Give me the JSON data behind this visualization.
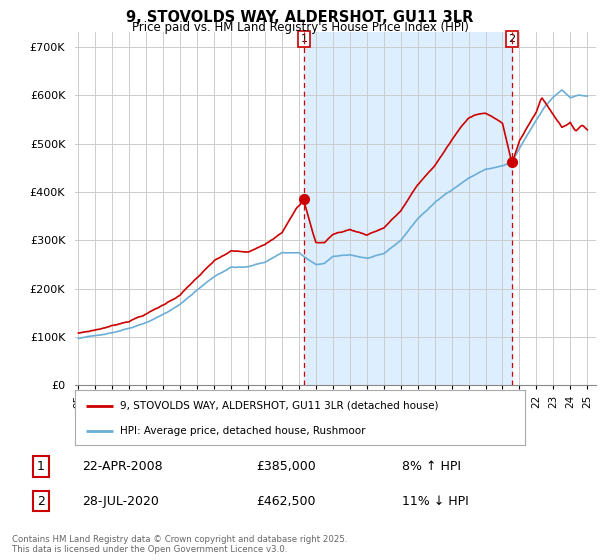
{
  "title": "9, STOVOLDS WAY, ALDERSHOT, GU11 3LR",
  "subtitle": "Price paid vs. HM Land Registry's House Price Index (HPI)",
  "ylim": [
    0,
    730000
  ],
  "yticks": [
    0,
    100000,
    200000,
    300000,
    400000,
    500000,
    600000,
    700000
  ],
  "ytick_labels": [
    "£0",
    "£100K",
    "£200K",
    "£300K",
    "£400K",
    "£500K",
    "£600K",
    "£700K"
  ],
  "hpi_color": "#6baed6",
  "price_color": "#cc0000",
  "shade_color": "#ddeeff",
  "grid_color": "#cccccc",
  "background_color": "#ffffff",
  "legend_label_price": "9, STOVOLDS WAY, ALDERSHOT, GU11 3LR (detached house)",
  "legend_label_hpi": "HPI: Average price, detached house, Rushmoor",
  "annotation1_date": "22-APR-2008",
  "annotation1_price": "£385,000",
  "annotation1_pct": "8% ↑ HPI",
  "annotation2_date": "28-JUL-2020",
  "annotation2_price": "£462,500",
  "annotation2_pct": "11% ↓ HPI",
  "footer": "Contains HM Land Registry data © Crown copyright and database right 2025.\nThis data is licensed under the Open Government Licence v3.0.",
  "vline1_x": 2008.29,
  "vline2_x": 2020.56,
  "marker1_y": 385000,
  "marker2_y": 462500,
  "xlim_start": 1994.8,
  "xlim_end": 2025.5
}
